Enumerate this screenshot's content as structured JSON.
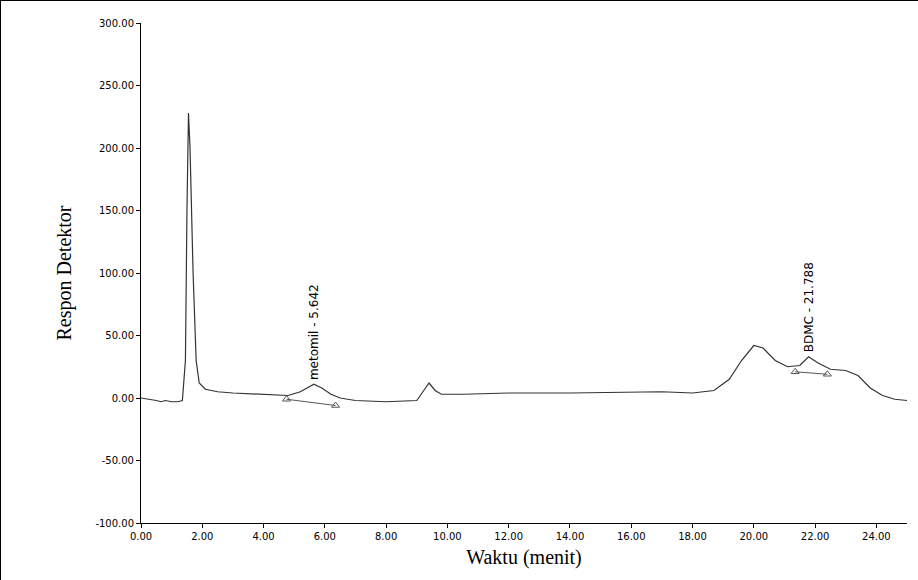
{
  "chart_data": {
    "type": "line",
    "xlabel": "Waktu (menit)",
    "ylabel": "Respon Detektor",
    "color": "#333333",
    "grid": false,
    "x": [
      0,
      0.3,
      0.5,
      0.65,
      0.8,
      1.0,
      1.2,
      1.35,
      1.45,
      1.5,
      1.55,
      1.6,
      1.7,
      1.8,
      1.9,
      2.1,
      2.5,
      3.0,
      4.0,
      4.8,
      5.2,
      5.5,
      5.642,
      5.9,
      6.2,
      6.5,
      7.0,
      8.0,
      9.0,
      9.2,
      9.4,
      9.6,
      9.8,
      10.5,
      12,
      14,
      16,
      17,
      18,
      18.7,
      19.2,
      19.6,
      20.0,
      20.3,
      20.7,
      21.1,
      21.5,
      21.788,
      22.1,
      22.5,
      23.0,
      23.4,
      23.8,
      24.2,
      24.6,
      25
    ],
    "values": [
      0,
      -1,
      -2,
      -3,
      -2,
      -3,
      -3,
      -2,
      30,
      150,
      228,
      200,
      100,
      30,
      12,
      7,
      5,
      4,
      3,
      2,
      5,
      9,
      11,
      8,
      3,
      0,
      -2,
      -3,
      -2,
      5,
      12,
      6,
      3,
      3,
      4,
      4,
      5,
      5,
      4,
      6,
      15,
      30,
      42,
      40,
      30,
      25,
      26,
      33,
      28,
      23,
      22,
      18,
      8,
      2,
      -1,
      -2
    ],
    "integration_baselines": [
      {
        "x": [
          4.75,
          6.35
        ],
        "y": [
          -1,
          -6
        ]
      },
      {
        "x": [
          21.35,
          22.4
        ],
        "y": [
          21,
          19
        ]
      }
    ],
    "annotations": [
      {
        "text": "metomil - 5.642",
        "x": 5.642,
        "y": 11
      },
      {
        "text": "BDMC - 21.788",
        "x": 21.788,
        "y": 33
      }
    ],
    "xlim": [
      0,
      25
    ],
    "xticks": [
      {
        "value": 0,
        "label": "0.00"
      },
      {
        "value": 2,
        "label": "2.00"
      },
      {
        "value": 4,
        "label": "4.00"
      },
      {
        "value": 6,
        "label": "6.00"
      },
      {
        "value": 8,
        "label": "8.00"
      },
      {
        "value": 10,
        "label": "10.00"
      },
      {
        "value": 12,
        "label": "12.00"
      },
      {
        "value": 14,
        "label": "14.00"
      },
      {
        "value": 16,
        "label": "16.00"
      },
      {
        "value": 18,
        "label": "18.00"
      },
      {
        "value": 20,
        "label": "20.00"
      },
      {
        "value": 22,
        "label": "22.00"
      },
      {
        "value": 24,
        "label": "24.00"
      }
    ],
    "ylim": [
      -100,
      300
    ],
    "yticks": [
      {
        "value": -100,
        "label": "-100.00"
      },
      {
        "value": -50,
        "label": "-50.00"
      },
      {
        "value": 0,
        "label": "0.00"
      },
      {
        "value": 50,
        "label": "50.00"
      },
      {
        "value": 100,
        "label": "100.00"
      },
      {
        "value": 150,
        "label": "150.00"
      },
      {
        "value": 200,
        "label": "200.00"
      },
      {
        "value": 250,
        "label": "250.00"
      },
      {
        "value": 300,
        "label": "300.00"
      }
    ]
  }
}
